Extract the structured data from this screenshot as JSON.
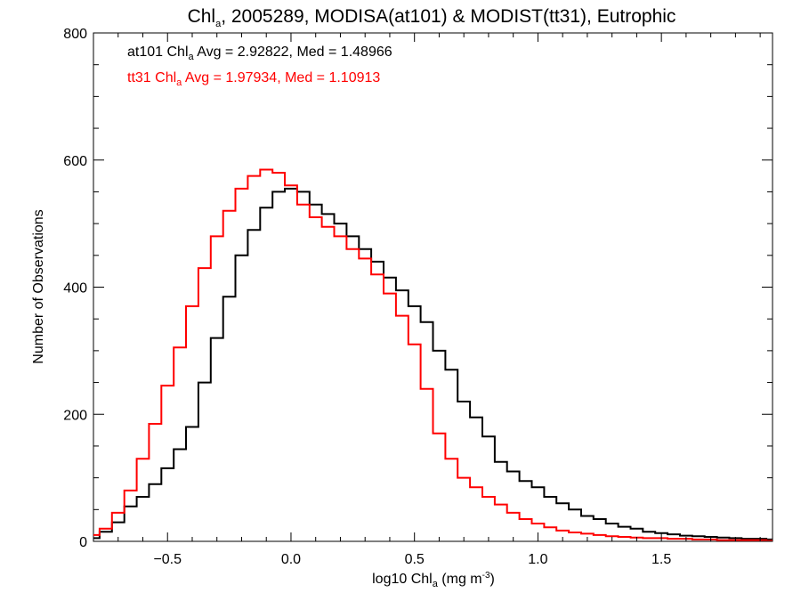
{
  "chart_data": {
    "type": "line",
    "title": {
      "prefix": "Chl",
      "sub": "a",
      "rest": ", 2005289, MODISA(at101) & MODIST(tt31), Eutrophic"
    },
    "xlabel": {
      "prefix": "log10 Chl",
      "sub": "a",
      "unit_start": " (mg m",
      "sup": "-3",
      "unit_end": ")"
    },
    "ylabel": "Number of Observations",
    "xlim": [
      -0.8,
      1.95
    ],
    "ylim": [
      0,
      800
    ],
    "xticks": [
      -0.5,
      0.0,
      0.5,
      1.0,
      1.5
    ],
    "xtick_labels": [
      "−0.5",
      "0.0",
      "0.5",
      "1.0",
      "1.5"
    ],
    "yticks": [
      0,
      200,
      400,
      600,
      800
    ],
    "ytick_labels": [
      "0",
      "200",
      "400",
      "600",
      "800"
    ],
    "grid": false,
    "annotations": [
      {
        "series": "at101",
        "color": "#000000",
        "label": "at101",
        "chl": "Chl",
        "sub": "a",
        "stats": " Avg = 2.92822, Med = 1.48966"
      },
      {
        "series": "tt31",
        "color": "#ff0000",
        "label": "tt31",
        "chl": "Chl",
        "sub": "a",
        "stats": " Avg = 1.97934, Med = 1.10913"
      }
    ],
    "series": [
      {
        "id": "at101",
        "color": "#000000",
        "x": [
          -0.8,
          -0.75,
          -0.7,
          -0.65,
          -0.6,
          -0.55,
          -0.5,
          -0.45,
          -0.4,
          -0.35,
          -0.3,
          -0.25,
          -0.2,
          -0.15,
          -0.1,
          -0.05,
          0.0,
          0.05,
          0.1,
          0.15,
          0.2,
          0.25,
          0.3,
          0.35,
          0.4,
          0.45,
          0.5,
          0.55,
          0.6,
          0.65,
          0.7,
          0.75,
          0.8,
          0.85,
          0.9,
          0.95,
          1.0,
          1.05,
          1.1,
          1.15,
          1.2,
          1.25,
          1.3,
          1.35,
          1.4,
          1.45,
          1.5,
          1.55,
          1.6,
          1.65,
          1.7,
          1.75,
          1.8,
          1.85,
          1.9,
          1.95
        ],
        "y": [
          5,
          15,
          30,
          55,
          70,
          90,
          115,
          145,
          180,
          250,
          320,
          385,
          450,
          490,
          525,
          550,
          555,
          550,
          530,
          515,
          500,
          480,
          460,
          440,
          415,
          395,
          370,
          345,
          300,
          270,
          220,
          195,
          165,
          125,
          110,
          95,
          85,
          70,
          60,
          50,
          40,
          35,
          28,
          23,
          20,
          15,
          13,
          11,
          9,
          8,
          7,
          6,
          5,
          4,
          4,
          3
        ]
      },
      {
        "id": "tt31",
        "color": "#ff0000",
        "x": [
          -0.8,
          -0.75,
          -0.7,
          -0.65,
          -0.6,
          -0.55,
          -0.5,
          -0.45,
          -0.4,
          -0.35,
          -0.3,
          -0.25,
          -0.2,
          -0.15,
          -0.1,
          -0.05,
          0.0,
          0.05,
          0.1,
          0.15,
          0.2,
          0.25,
          0.3,
          0.35,
          0.4,
          0.45,
          0.5,
          0.55,
          0.6,
          0.65,
          0.7,
          0.75,
          0.8,
          0.85,
          0.9,
          0.95,
          1.0,
          1.05,
          1.1,
          1.15,
          1.2,
          1.25,
          1.3,
          1.35,
          1.4,
          1.45,
          1.5,
          1.55,
          1.6,
          1.65,
          1.7,
          1.75,
          1.8,
          1.85,
          1.9,
          1.95
        ],
        "y": [
          10,
          20,
          45,
          80,
          130,
          185,
          245,
          305,
          370,
          430,
          480,
          520,
          555,
          575,
          585,
          580,
          560,
          530,
          510,
          495,
          480,
          460,
          445,
          420,
          390,
          355,
          310,
          240,
          170,
          130,
          100,
          85,
          70,
          58,
          45,
          35,
          28,
          22,
          17,
          14,
          12,
          10,
          8,
          7,
          6,
          5,
          5,
          4,
          4,
          3,
          3,
          2,
          2,
          2,
          2,
          1
        ]
      }
    ]
  }
}
